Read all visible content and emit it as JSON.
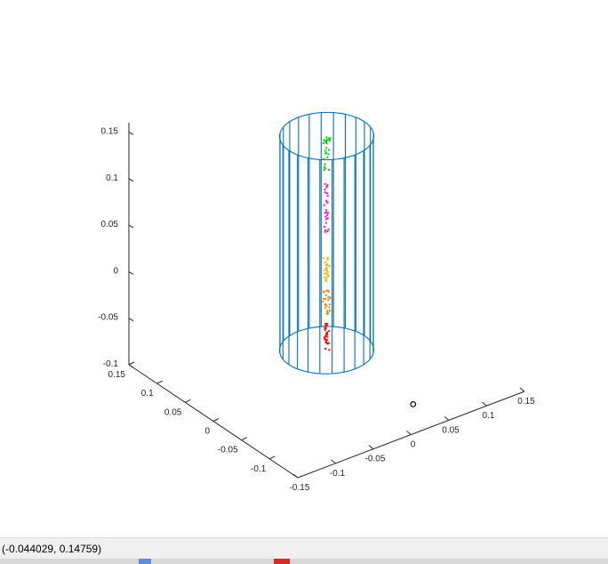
{
  "chart_data": {
    "type": "scatter3d",
    "title": "",
    "xlabel": "",
    "ylabel": "",
    "zlabel": "",
    "grid": false,
    "xlim": [
      -0.15,
      0.15
    ],
    "ylim": [
      -0.15,
      0.15
    ],
    "zlim": [
      -0.1,
      0.15
    ],
    "x_ticks": [
      "-0.15",
      "-0.1",
      "-0.05",
      "0",
      "0.05",
      "0.1",
      "0.15"
    ],
    "y_ticks": [
      "-0.1",
      "-0.05",
      "0",
      "0.05",
      "0.1",
      "0.15"
    ],
    "z_ticks": [
      "-0.1",
      "-0.05",
      "0",
      "0.05",
      "0.1",
      "0.15"
    ],
    "cylinder": {
      "color": "#0072bd",
      "radius": 0.05,
      "z_range": [
        -0.07,
        0.16
      ],
      "generator_lines": 24
    },
    "marker": {
      "x": 0.04,
      "y": -0.1,
      "z": -0.1,
      "color": "#000000"
    },
    "series": [
      {
        "color": "#ff0000",
        "z_range": [
          -0.07,
          -0.04
        ]
      },
      {
        "color": "#ff8000",
        "z_range": [
          -0.03,
          -0.005
        ]
      },
      {
        "color": "#e6c000",
        "z_range": [
          0.005,
          0.03
        ]
      },
      {
        "color": "#ff00ff",
        "z_range": [
          0.05,
          0.11
        ]
      },
      {
        "color": "#00cc00",
        "z_range": [
          0.12,
          0.16
        ]
      }
    ]
  },
  "status_bar": {
    "coordinates": "(-0.044029, 0.14759)"
  }
}
